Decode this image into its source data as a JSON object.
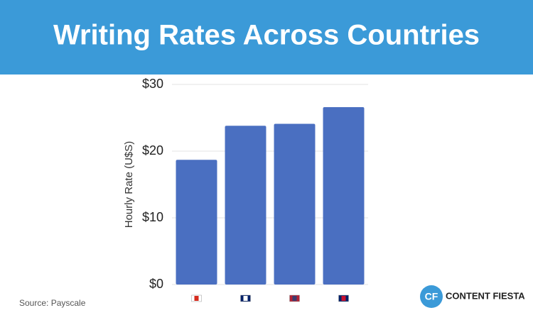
{
  "header": {
    "title": "Writing Rates Across Countries"
  },
  "chart_data": {
    "type": "bar",
    "y_label": "Hourly Rate (U$S)",
    "categories": [
      null,
      null,
      null,
      null
    ],
    "values": [
      18.7,
      23.8,
      24.1,
      26.6
    ],
    "color": "#4a6fc1",
    "ylim": [
      0,
      30
    ],
    "yticks": [
      {
        "value": 0,
        "label": "$0"
      },
      {
        "value": 10,
        "label": "$10"
      },
      {
        "value": 20,
        "label": "$20"
      },
      {
        "value": 30,
        "label": "$30"
      }
    ],
    "grid": true
  },
  "footer": {
    "source": "Source: Payscale",
    "logo_mark": "CF",
    "logo_text": "CONTENT FIESTA"
  }
}
